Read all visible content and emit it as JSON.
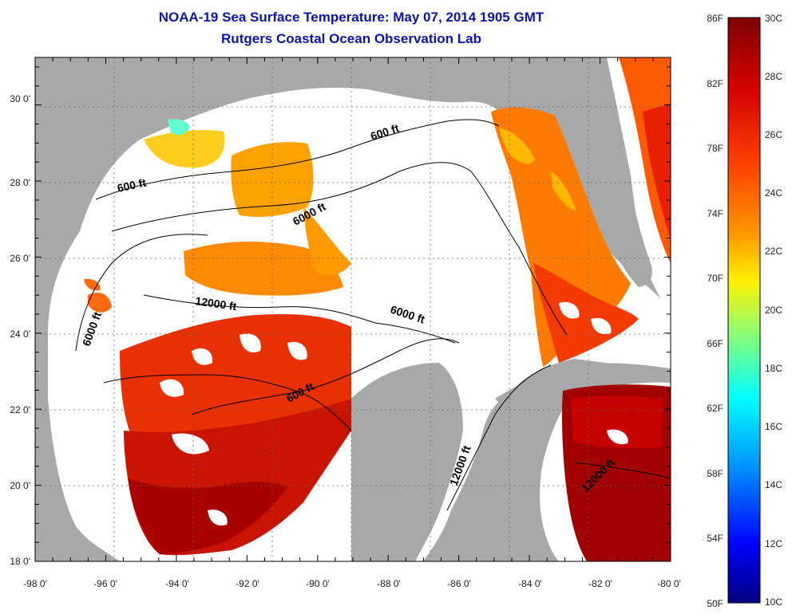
{
  "header": {
    "title": "NOAA-19 Sea Surface Temperature:  May 07, 2014 1905 GMT",
    "subtitle": "Rutgers Coastal Ocean Observation Lab"
  },
  "axes": {
    "x_labels": [
      "-98 0'",
      "-96 0'",
      "-94 0'",
      "-92 0'",
      "-90 0'",
      "-88 0'",
      "-86 0'",
      "-84 0'",
      "-82 0'",
      "-80 0'"
    ],
    "y_labels": [
      "18 0'",
      "20 0'",
      "22 0'",
      "24 0'",
      "26 0'",
      "28 0'",
      "30 0'"
    ]
  },
  "contours": [
    "600 ft",
    "6000 ft",
    "600 ft",
    "12000 ft",
    "6000 ft",
    "6000 ft",
    "600 ft",
    "12000 ft",
    "12000 ft"
  ],
  "colorbar": {
    "f_labels": [
      "86F",
      "82F",
      "78F",
      "74F",
      "70F",
      "66F",
      "62F",
      "58F",
      "54F",
      "50F"
    ],
    "c_labels": [
      "30C",
      "28C",
      "26C",
      "24C",
      "22C",
      "20C",
      "18C",
      "16C",
      "14C",
      "12C",
      "10C"
    ]
  },
  "colors": {
    "land": "#a8a8a8",
    "water_no_data": "#ffffff",
    "title": "#0b14a8"
  }
}
